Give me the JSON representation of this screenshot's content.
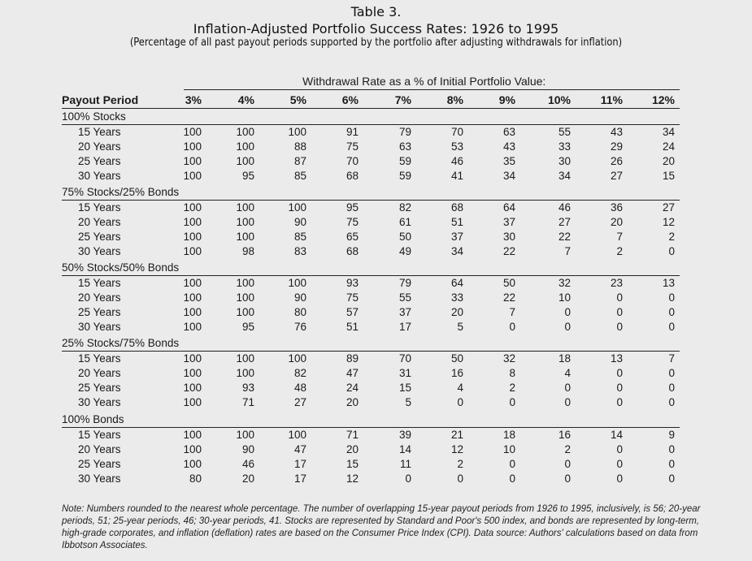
{
  "title": {
    "line1": "Table 3.",
    "line2": "Inflation-Adjusted Portfolio Success Rates: 1926 to 1995",
    "line3": "(Percentage of all past payout periods supported by the portfolio after adjusting withdrawals for inflation)"
  },
  "header": {
    "withdrawal_label": "Withdrawal Rate as a % of Initial Portfolio Value:",
    "payout_label": "Payout Period",
    "rates": [
      "3%",
      "4%",
      "5%",
      "6%",
      "7%",
      "8%",
      "9%",
      "10%",
      "11%",
      "12%"
    ]
  },
  "groups": [
    {
      "name": "100% Stocks",
      "rows": [
        {
          "period": "15 Years",
          "values": [
            "100",
            "100",
            "100",
            "91",
            "79",
            "70",
            "63",
            "55",
            "43",
            "34"
          ]
        },
        {
          "period": "20 Years",
          "values": [
            "100",
            "100",
            "88",
            "75",
            "63",
            "53",
            "43",
            "33",
            "29",
            "24"
          ]
        },
        {
          "period": "25 Years",
          "values": [
            "100",
            "100",
            "87",
            "70",
            "59",
            "46",
            "35",
            "30",
            "26",
            "20"
          ]
        },
        {
          "period": "30 Years",
          "values": [
            "100",
            "95",
            "85",
            "68",
            "59",
            "41",
            "34",
            "34",
            "27",
            "15"
          ]
        }
      ]
    },
    {
      "name": "75% Stocks/25% Bonds",
      "rows": [
        {
          "period": "15 Years",
          "values": [
            "100",
            "100",
            "100",
            "95",
            "82",
            "68",
            "64",
            "46",
            "36",
            "27"
          ]
        },
        {
          "period": "20 Years",
          "values": [
            "100",
            "100",
            "90",
            "75",
            "61",
            "51",
            "37",
            "27",
            "20",
            "12"
          ]
        },
        {
          "period": "25 Years",
          "values": [
            "100",
            "100",
            "85",
            "65",
            "50",
            "37",
            "30",
            "22",
            "7",
            "2"
          ]
        },
        {
          "period": "30 Years",
          "values": [
            "100",
            "98",
            "83",
            "68",
            "49",
            "34",
            "22",
            "7",
            "2",
            "0"
          ]
        }
      ]
    },
    {
      "name": "50% Stocks/50% Bonds",
      "rows": [
        {
          "period": "15 Years",
          "values": [
            "100",
            "100",
            "100",
            "93",
            "79",
            "64",
            "50",
            "32",
            "23",
            "13"
          ]
        },
        {
          "period": "20 Years",
          "values": [
            "100",
            "100",
            "90",
            "75",
            "55",
            "33",
            "22",
            "10",
            "0",
            "0"
          ]
        },
        {
          "period": "25 Years",
          "values": [
            "100",
            "100",
            "80",
            "57",
            "37",
            "20",
            "7",
            "0",
            "0",
            "0"
          ]
        },
        {
          "period": "30 Years",
          "values": [
            "100",
            "95",
            "76",
            "51",
            "17",
            "5",
            "0",
            "0",
            "0",
            "0"
          ]
        }
      ]
    },
    {
      "name": "25% Stocks/75% Bonds",
      "rows": [
        {
          "period": "15 Years",
          "values": [
            "100",
            "100",
            "100",
            "89",
            "70",
            "50",
            "32",
            "18",
            "13",
            "7"
          ]
        },
        {
          "period": "20 Years",
          "values": [
            "100",
            "100",
            "82",
            "47",
            "31",
            "16",
            "8",
            "4",
            "0",
            "0"
          ]
        },
        {
          "period": "25 Years",
          "values": [
            "100",
            "93",
            "48",
            "24",
            "15",
            "4",
            "2",
            "0",
            "0",
            "0"
          ]
        },
        {
          "period": "30 Years",
          "values": [
            "100",
            "71",
            "27",
            "20",
            "5",
            "0",
            "0",
            "0",
            "0",
            "0"
          ]
        }
      ]
    },
    {
      "name": "100% Bonds",
      "rows": [
        {
          "period": "15 Years",
          "values": [
            "100",
            "100",
            "100",
            "71",
            "39",
            "21",
            "18",
            "16",
            "14",
            "9"
          ]
        },
        {
          "period": "20 Years",
          "values": [
            "100",
            "90",
            "47",
            "20",
            "14",
            "12",
            "10",
            "2",
            "0",
            "0"
          ]
        },
        {
          "period": "25 Years",
          "values": [
            "100",
            "46",
            "17",
            "15",
            "11",
            "2",
            "0",
            "0",
            "0",
            "0"
          ]
        },
        {
          "period": "30 Years",
          "values": [
            "80",
            "20",
            "17",
            "12",
            "0",
            "0",
            "0",
            "0",
            "0",
            "0"
          ]
        }
      ]
    }
  ],
  "note": "Note: Numbers rounded to the nearest whole percentage. The number of overlapping 15-year payout periods from 1926 to 1995, inclusively, is 56; 20-year periods, 51; 25-year periods, 46; 30-year periods, 41. Stocks are represented by Standard and Poor's 500 index, and bonds are represented by long-term, high-grade corporates, and inflation (deflation) rates are based on the Consumer Price Index (CPI). Data source: Authors' calculations based on data from Ibbotson Associates."
}
